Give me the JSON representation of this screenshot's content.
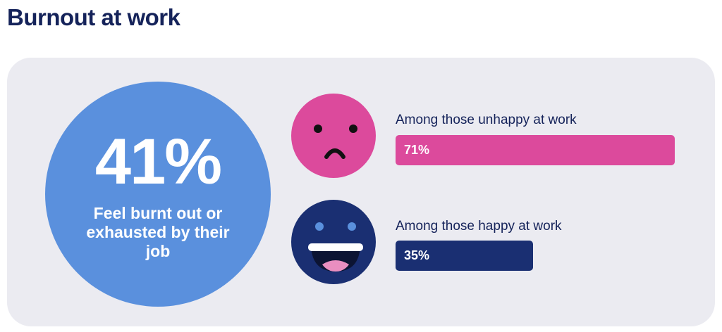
{
  "page": {
    "title": "Burnout at work"
  },
  "headline": {
    "value": "41%",
    "caption": "Feel burnt out or exhausted by their job"
  },
  "colors": {
    "title": "#15235a",
    "panel": "#ebebf1",
    "headline_circle": "#5a90dd",
    "unhappy": "#dc4a9c",
    "happy": "#1a2f72",
    "happy_eyes": "#5a90dd",
    "happy_tongue": "#e98ec0"
  },
  "icons": {
    "unhappy": "sad-face-icon",
    "happy": "laughing-face-icon"
  },
  "chart_data": {
    "type": "bar",
    "orientation": "horizontal",
    "categories": [
      "Among those unhappy at work",
      "Among those happy at work"
    ],
    "values": [
      71,
      35
    ],
    "data_labels": [
      "71%",
      "35%"
    ],
    "unit": "%",
    "xlim": [
      0,
      71
    ],
    "grid": false
  }
}
